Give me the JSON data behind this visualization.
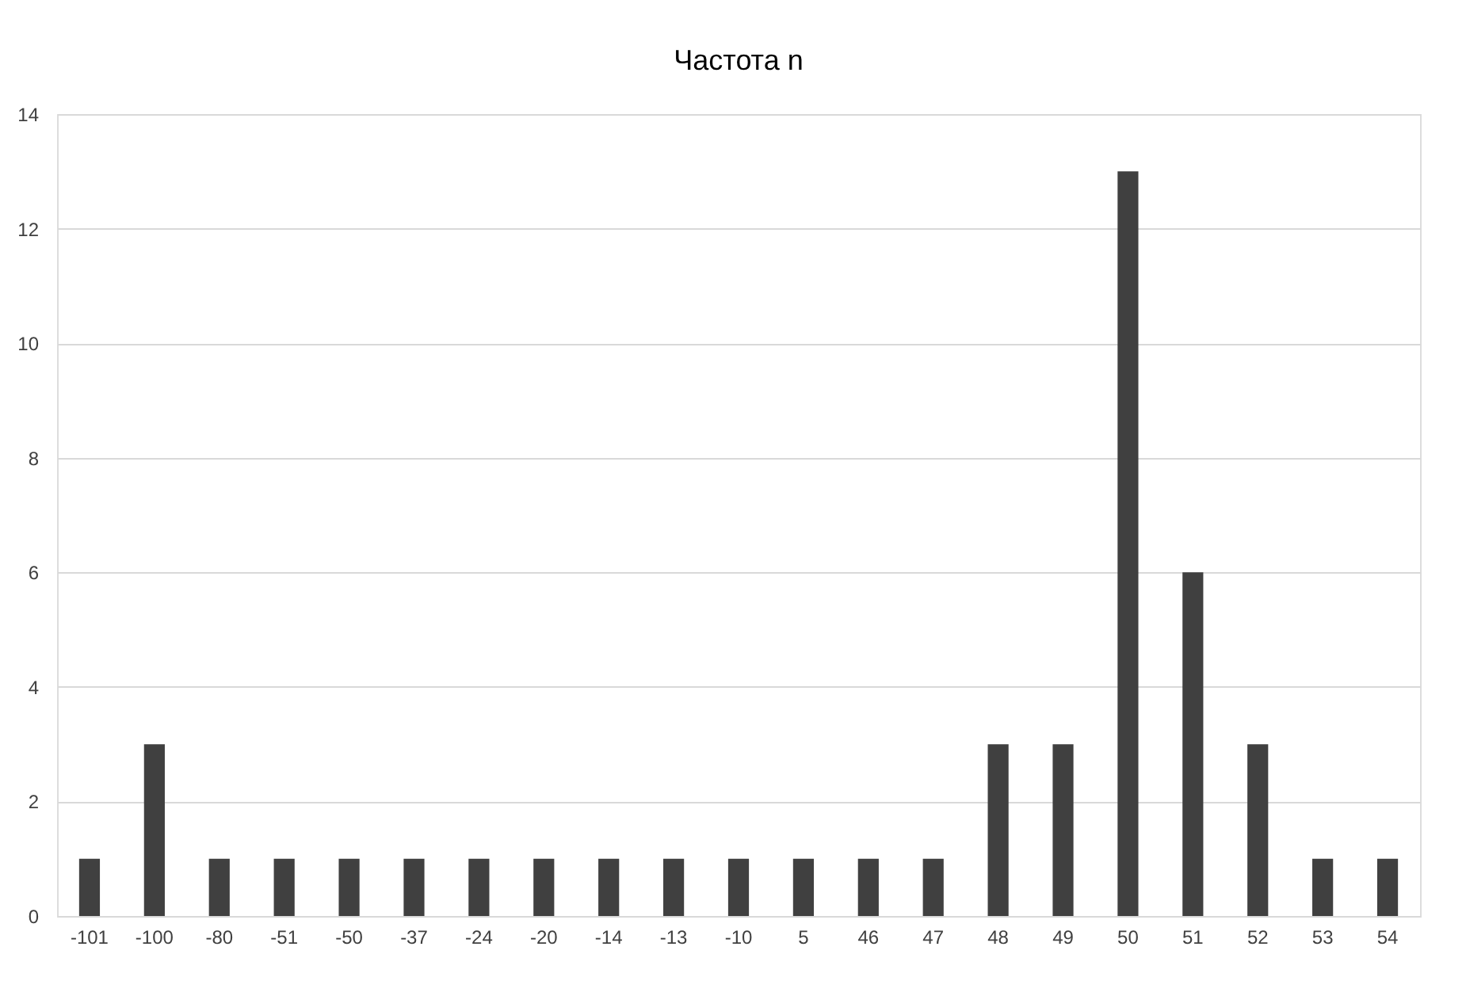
{
  "chart_data": {
    "type": "bar",
    "title": "Частота n",
    "categories": [
      "-101",
      "-100",
      "-80",
      "-51",
      "-50",
      "-37",
      "-24",
      "-20",
      "-14",
      "-13",
      "-10",
      "5",
      "46",
      "47",
      "48",
      "49",
      "50",
      "51",
      "52",
      "53",
      "54"
    ],
    "values": [
      1,
      3,
      1,
      1,
      1,
      1,
      1,
      1,
      1,
      1,
      1,
      1,
      1,
      1,
      3,
      3,
      13,
      6,
      3,
      1,
      1
    ],
    "color": "#404040",
    "ylim": [
      0,
      14
    ],
    "yticks": [
      0,
      2,
      4,
      6,
      8,
      10,
      12,
      14
    ],
    "grid": "y"
  }
}
